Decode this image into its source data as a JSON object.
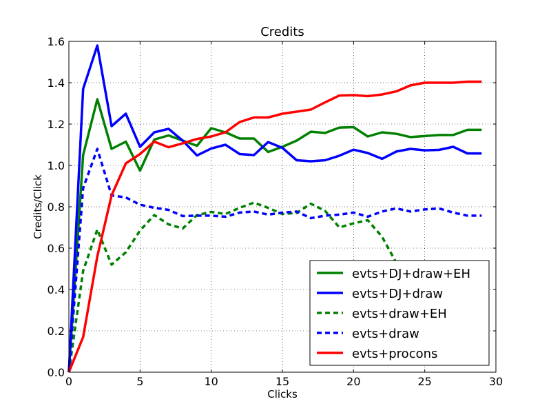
{
  "chart_data": {
    "type": "line",
    "title": "Credits",
    "xlabel": "Clicks",
    "ylabel": "Credits/Click",
    "xlim": [
      0,
      30
    ],
    "ylim": [
      0.0,
      1.6
    ],
    "x_ticks": [
      0,
      5,
      10,
      15,
      20,
      25,
      30
    ],
    "y_ticks": [
      0.0,
      0.2,
      0.4,
      0.6,
      0.8,
      1.0,
      1.2,
      1.4,
      1.6
    ],
    "x_tick_labels": [
      "0",
      "5",
      "10",
      "15",
      "20",
      "25",
      "30"
    ],
    "y_tick_labels": [
      "0.0",
      "0.2",
      "0.4",
      "0.6",
      "0.8",
      "1.0",
      "1.2",
      "1.4",
      "1.6"
    ],
    "grid": true,
    "legend_position": "lower-right",
    "x": [
      0,
      1,
      2,
      3,
      4,
      5,
      6,
      7,
      8,
      9,
      10,
      11,
      12,
      13,
      14,
      15,
      16,
      17,
      18,
      19,
      20,
      21,
      22,
      23,
      24,
      25,
      26,
      27,
      28,
      29
    ],
    "series": [
      {
        "name": "evts+DJ+draw+EH",
        "color": "#008000",
        "style": "solid",
        "values": [
          0.0,
          1.05,
          1.32,
          1.08,
          1.115,
          0.975,
          1.125,
          1.145,
          1.12,
          1.095,
          1.18,
          1.16,
          1.13,
          1.13,
          1.065,
          1.09,
          1.12,
          1.163,
          1.157,
          1.183,
          1.185,
          1.14,
          1.16,
          1.153,
          1.137,
          1.142,
          1.147,
          1.147,
          1.172,
          1.172
        ]
      },
      {
        "name": "evts+DJ+draw",
        "color": "#0000ff",
        "style": "solid",
        "values": [
          0.0,
          1.37,
          1.58,
          1.19,
          1.25,
          1.09,
          1.16,
          1.177,
          1.12,
          1.048,
          1.082,
          1.1,
          1.055,
          1.05,
          1.113,
          1.085,
          1.025,
          1.02,
          1.025,
          1.047,
          1.076,
          1.06,
          1.032,
          1.067,
          1.08,
          1.073,
          1.075,
          1.09,
          1.058,
          1.058
        ]
      },
      {
        "name": "evts+draw+EH",
        "color": "#008000",
        "style": "dashed",
        "values": [
          0.0,
          0.49,
          0.69,
          0.52,
          0.58,
          0.685,
          0.76,
          0.715,
          0.695,
          0.76,
          0.775,
          0.765,
          0.795,
          0.82,
          0.795,
          0.765,
          0.77,
          0.815,
          0.78,
          0.7,
          0.72,
          0.735,
          0.655,
          0.53,
          null,
          null,
          null,
          null,
          null,
          null
        ]
      },
      {
        "name": "evts+draw",
        "color": "#0000ff",
        "style": "dashed",
        "values": [
          0.0,
          0.89,
          1.08,
          0.855,
          0.845,
          0.81,
          0.795,
          0.785,
          0.755,
          0.757,
          0.757,
          0.752,
          0.772,
          0.777,
          0.762,
          0.772,
          0.777,
          0.745,
          0.757,
          0.762,
          0.772,
          0.752,
          0.777,
          0.792,
          0.777,
          0.787,
          0.792,
          0.772,
          0.757,
          0.757
        ]
      },
      {
        "name": "evts+procons",
        "color": "#ff0000",
        "style": "solid",
        "values": [
          0.0,
          0.17,
          0.56,
          0.855,
          1.01,
          1.055,
          1.115,
          1.088,
          1.107,
          1.128,
          1.14,
          1.16,
          1.21,
          1.232,
          1.232,
          1.25,
          1.26,
          1.27,
          1.305,
          1.338,
          1.34,
          1.335,
          1.343,
          1.358,
          1.387,
          1.4,
          1.4,
          1.4,
          1.405,
          1.405
        ]
      }
    ]
  }
}
